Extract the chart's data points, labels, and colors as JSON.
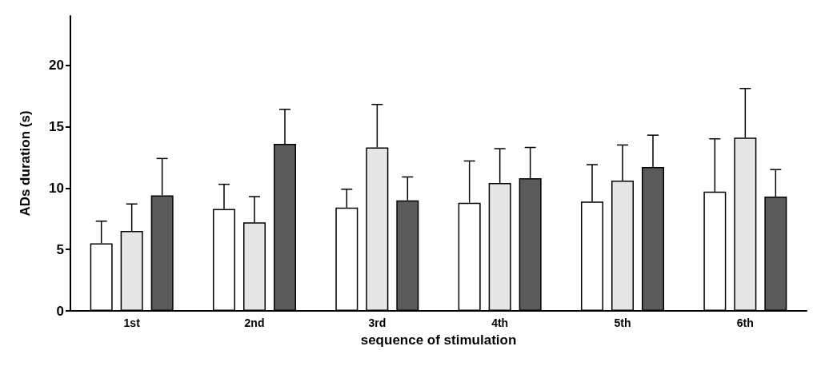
{
  "chart_data": {
    "type": "bar",
    "xlabel": "sequence of stimulation",
    "ylabel": "ADs duration (s)",
    "categories": [
      "1st",
      "2nd",
      "3rd",
      "4th",
      "5th",
      "6th"
    ],
    "ylim": [
      0,
      24
    ],
    "yticks": [
      0,
      5,
      10,
      15,
      20
    ],
    "grid": false,
    "series": [
      {
        "color": "#ffffff",
        "values": [
          5.5,
          8.3,
          8.4,
          8.8,
          8.9,
          9.7
        ],
        "errors": [
          [
            5.5,
            7.3
          ],
          [
            8.3,
            10.3
          ],
          [
            8.4,
            9.9
          ],
          [
            8.8,
            12.2
          ],
          [
            8.9,
            11.9
          ],
          [
            9.7,
            14.0
          ]
        ]
      },
      {
        "color": "#e6e6e6",
        "values": [
          6.5,
          7.2,
          13.3,
          10.4,
          10.6,
          14.1
        ],
        "errors": [
          [
            6.5,
            8.7
          ],
          [
            7.2,
            9.3
          ],
          [
            13.3,
            16.8
          ],
          [
            10.4,
            13.2
          ],
          [
            10.6,
            13.5
          ],
          [
            14.1,
            18.1
          ]
        ]
      },
      {
        "color": "#5a5a5a",
        "values": [
          9.4,
          13.6,
          9.0,
          10.8,
          11.7,
          9.3
        ],
        "errors": [
          [
            9.4,
            12.4
          ],
          [
            13.6,
            16.4
          ],
          [
            9.0,
            10.9
          ],
          [
            10.8,
            13.3
          ],
          [
            11.7,
            14.3
          ],
          [
            9.3,
            11.5
          ]
        ]
      }
    ]
  }
}
